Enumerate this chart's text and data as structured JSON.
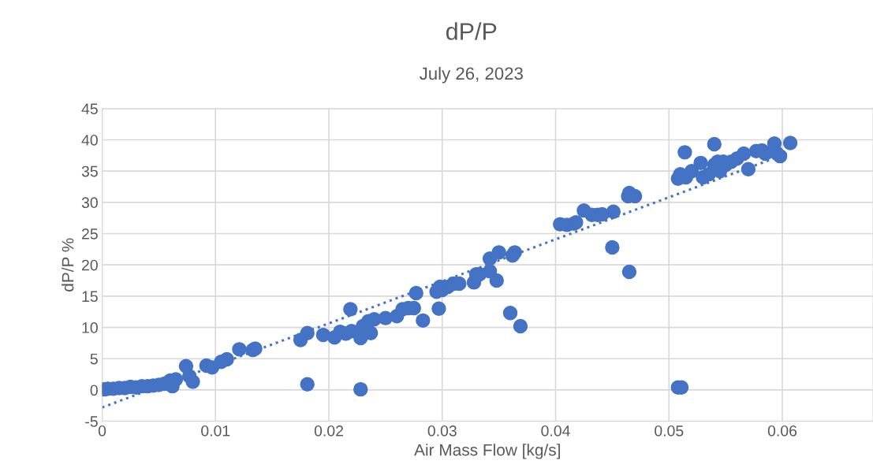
{
  "chart_data": {
    "type": "scatter",
    "title": "dP/P",
    "subtitle": "July 26, 2023",
    "xlabel": "Air Mass Flow [kg/s]",
    "ylabel": "dP/P %",
    "xlim": [
      0,
      0.068
    ],
    "xticks": [
      0,
      0.01,
      0.02,
      0.03,
      0.04,
      0.05,
      0.06
    ],
    "ylim": [
      -5,
      45
    ],
    "yticks": [
      -5,
      0,
      5,
      10,
      15,
      20,
      25,
      30,
      35,
      40,
      45
    ],
    "grid": true,
    "legend": false,
    "series": [
      {
        "marker": "circle",
        "color": "#4472c4",
        "x": [
          0.0002,
          0.0005,
          0.001,
          0.0015,
          0.002,
          0.0025,
          0.003,
          0.0035,
          0.004,
          0.0045,
          0.005,
          0.0055,
          0.006,
          0.0065,
          0.0062,
          0.0074,
          0.0077,
          0.008,
          0.0092,
          0.0097,
          0.0105,
          0.011,
          0.0121,
          0.0133,
          0.0135,
          0.0175,
          0.0181,
          0.0181,
          0.0195,
          0.0205,
          0.021,
          0.0215,
          0.022,
          0.0219,
          0.0228,
          0.0228,
          0.023,
          0.0237,
          0.0235,
          0.024,
          0.025,
          0.026,
          0.0265,
          0.027,
          0.0275,
          0.0283,
          0.0277,
          0.0295,
          0.0297,
          0.0298,
          0.03,
          0.0305,
          0.031,
          0.0315,
          0.0328,
          0.033,
          0.0333,
          0.0342,
          0.0342,
          0.0348,
          0.035,
          0.036,
          0.0362,
          0.0364,
          0.0369,
          0.0404,
          0.041,
          0.0416,
          0.0418,
          0.0425,
          0.0432,
          0.0437,
          0.0441,
          0.0451,
          0.045,
          0.0465,
          0.0464,
          0.0465,
          0.047,
          0.0508,
          0.0511,
          0.0508,
          0.051,
          0.0514,
          0.0515,
          0.052,
          0.0528,
          0.053,
          0.0535,
          0.054,
          0.054,
          0.0543,
          0.0545,
          0.0548,
          0.055,
          0.0555,
          0.056,
          0.0566,
          0.057,
          0.0577,
          0.0582,
          0.0585,
          0.0593,
          0.0595,
          0.0598,
          0.0607
        ],
        "values": [
          0.1,
          0.2,
          0.2,
          0.3,
          0.3,
          0.5,
          0.4,
          0.6,
          0.6,
          0.7,
          0.8,
          1.0,
          1.5,
          1.7,
          0.6,
          3.8,
          2.2,
          1.3,
          3.9,
          3.6,
          4.5,
          4.9,
          6.5,
          6.4,
          6.6,
          8.0,
          9.1,
          0.9,
          8.8,
          8.4,
          9.3,
          9.0,
          9.4,
          12.9,
          8.3,
          0.1,
          10.2,
          9.1,
          11.0,
          11.3,
          11.5,
          11.8,
          12.9,
          13.1,
          13.1,
          11.1,
          15.5,
          15.7,
          13.0,
          16.5,
          16.0,
          16.5,
          17.0,
          17.0,
          17.2,
          18.5,
          18.5,
          19.0,
          21.0,
          17.5,
          22.0,
          12.3,
          21.5,
          22.0,
          10.2,
          26.5,
          26.4,
          26.6,
          26.8,
          28.7,
          28.0,
          28.0,
          28.1,
          28.5,
          22.8,
          18.9,
          31.0,
          31.5,
          31.0,
          0.4,
          0.4,
          33.8,
          34.5,
          38.0,
          34.0,
          35.0,
          36.3,
          34.0,
          34.5,
          39.3,
          36.0,
          36.5,
          35.0,
          36.5,
          36.0,
          36.5,
          37.0,
          37.8,
          35.3,
          38.2,
          38.3,
          37.8,
          39.4,
          37.9,
          37.4,
          39.5
        ]
      },
      {
        "type": "line",
        "marker": "none",
        "line_style": "dotted",
        "color": "#4472c4",
        "x": [
          0,
          0.0607
        ],
        "values": [
          -2.8,
          38.0
        ]
      }
    ]
  }
}
